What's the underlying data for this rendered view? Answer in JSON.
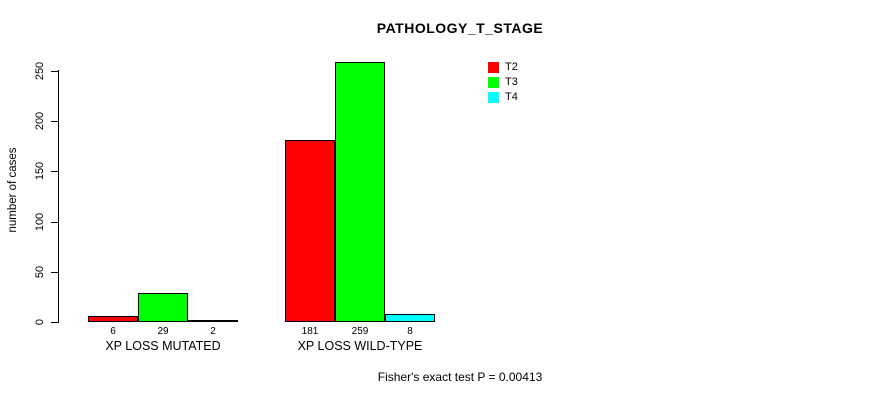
{
  "chart": {
    "title": "PATHOLOGY_T_STAGE",
    "ylabel": "number of cases",
    "footer": "Fisher's exact test P = 0.00413"
  },
  "chart_data": {
    "type": "bar",
    "title": "PATHOLOGY_T_STAGE",
    "xlabel": "",
    "ylabel": "number of cases",
    "categories": [
      "XP LOSS MUTATED",
      "XP LOSS WILD-TYPE"
    ],
    "series": [
      {
        "name": "T2",
        "color": "#FF0000",
        "values": [
          6,
          181
        ]
      },
      {
        "name": "T3",
        "color": "#00FF00",
        "values": [
          29,
          259
        ]
      },
      {
        "name": "T4",
        "color": "#00FFFF",
        "values": [
          2,
          8
        ]
      }
    ],
    "yticks": [
      0,
      50,
      100,
      150,
      200,
      250
    ],
    "ylim": [
      0,
      260
    ],
    "grid": false,
    "legend": {
      "position": "top-right",
      "entries": [
        "T2",
        "T3",
        "T4"
      ]
    },
    "annotation": "Fisher's exact test P = 0.00413"
  }
}
